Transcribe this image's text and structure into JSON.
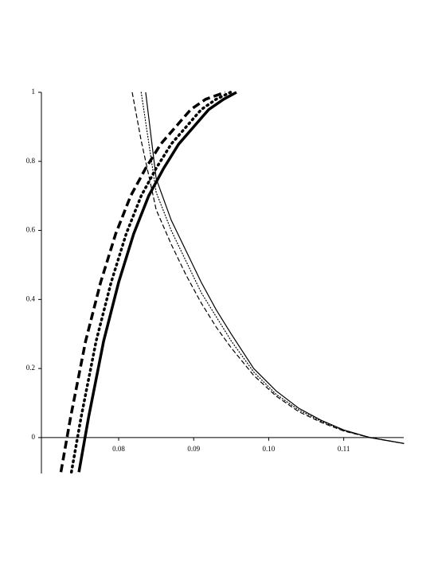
{
  "chart_data": {
    "type": "line",
    "xlim": [
      0.0697,
      0.118
    ],
    "ylim": [
      -0.104,
      1.0
    ],
    "xticks": [
      0.08,
      0.09,
      {
        "value": 0.1,
        "label": "0.10"
      },
      0.11
    ],
    "yticks": [
      0,
      0.2,
      0.4,
      0.6,
      0.8,
      1
    ],
    "series": [
      {
        "color": "#000000",
        "style": "solid",
        "weight": "thick",
        "x": [
          0.0747,
          0.076,
          0.078,
          0.08,
          0.082,
          0.084,
          0.086,
          0.088,
          0.09,
          0.092,
          0.094,
          0.0957
        ],
        "values": [
          -0.1,
          0.06,
          0.28,
          0.45,
          0.59,
          0.7,
          0.78,
          0.85,
          0.9,
          0.95,
          0.98,
          1.0
        ]
      },
      {
        "color": "#000000",
        "style": "dot",
        "weight": "thick",
        "x": [
          0.0737,
          0.075,
          0.077,
          0.079,
          0.081,
          0.083,
          0.085,
          0.087,
          0.089,
          0.091,
          0.093,
          0.0949
        ],
        "values": [
          -0.1,
          0.06,
          0.28,
          0.45,
          0.59,
          0.7,
          0.78,
          0.85,
          0.9,
          0.95,
          0.98,
          1.0
        ]
      },
      {
        "color": "#000000",
        "style": "dash",
        "weight": "thick",
        "x": [
          0.0723,
          0.0736,
          0.0756,
          0.0776,
          0.0796,
          0.0816,
          0.0836,
          0.0856,
          0.0876,
          0.0896,
          0.0916,
          0.0942
        ],
        "values": [
          -0.1,
          0.06,
          0.28,
          0.45,
          0.59,
          0.7,
          0.78,
          0.85,
          0.9,
          0.95,
          0.98,
          1.0
        ]
      },
      {
        "color": "#000000",
        "style": "solid",
        "weight": "thin",
        "x": [
          0.0836,
          0.085,
          0.087,
          0.089,
          0.091,
          0.093,
          0.095,
          0.098,
          0.101,
          0.104,
          0.107,
          0.11,
          0.1135,
          0.118
        ],
        "values": [
          1.0,
          0.75,
          0.63,
          0.54,
          0.45,
          0.37,
          0.3,
          0.2,
          0.135,
          0.085,
          0.05,
          0.022,
          0,
          -0.017
        ]
      },
      {
        "color": "#000000",
        "style": "dot",
        "weight": "thin",
        "x": [
          0.083,
          0.085,
          0.087,
          0.089,
          0.091,
          0.093,
          0.095,
          0.098,
          0.101,
          0.104,
          0.107,
          0.11,
          0.1135,
          0.118
        ],
        "values": [
          1.0,
          0.71,
          0.6,
          0.51,
          0.42,
          0.35,
          0.28,
          0.19,
          0.125,
          0.08,
          0.047,
          0.02,
          0,
          -0.017
        ]
      },
      {
        "color": "#000000",
        "style": "dash",
        "weight": "thin",
        "x": [
          0.0818,
          0.083,
          0.085,
          0.087,
          0.089,
          0.091,
          0.093,
          0.095,
          0.098,
          0.101,
          0.104,
          0.107,
          0.11,
          0.1135,
          0.118
        ],
        "values": [
          1.0,
          0.86,
          0.66,
          0.56,
          0.47,
          0.39,
          0.32,
          0.26,
          0.18,
          0.12,
          0.075,
          0.044,
          0.019,
          0,
          -0.017
        ]
      }
    ]
  }
}
